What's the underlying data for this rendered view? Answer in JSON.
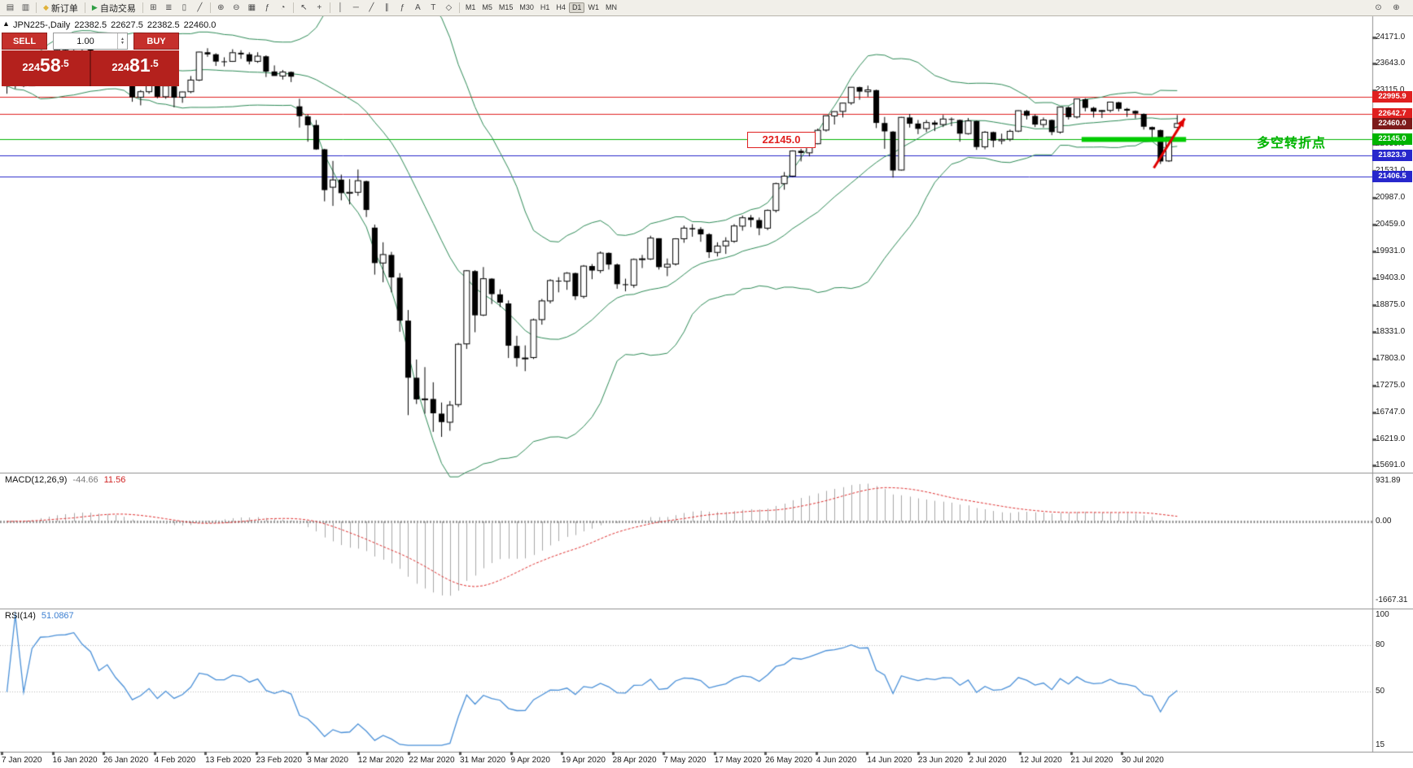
{
  "toolbar": {
    "groups": [
      {
        "items": [
          {
            "name": "new-chart-icon",
            "glyph": "▤"
          },
          {
            "name": "chart-profiles-icon",
            "glyph": "▥"
          }
        ]
      },
      {
        "items": [
          {
            "name": "new-order-button",
            "glyph": "◆",
            "glyph_color": "#dba margin",
            "label": ""
          }
        ]
      },
      {
        "items": [
          {
            "name": "tile-windows-icon",
            "glyph": "⊞"
          },
          {
            "name": "bar-chart-icon",
            "glyph": "≣"
          },
          {
            "name": "candlestick-chart-icon",
            "glyph": "▯"
          },
          {
            "name": "line-chart-icon",
            "glyph": "╱"
          }
        ]
      },
      {
        "items": [
          {
            "name": "zoom-in-icon",
            "glyph": "⊕"
          },
          {
            "name": "zoom-out-icon",
            "glyph": "⊖"
          },
          {
            "name": "grid-icon",
            "glyph": "▦"
          },
          {
            "name": "indicators-icon",
            "glyph": "ƒ"
          },
          {
            "name": "periods-icon",
            "glyph": "◔"
          }
        ]
      },
      {
        "items": [
          {
            "name": "cursor-icon",
            "glyph": "↖"
          },
          {
            "name": "crosshair-icon",
            "glyph": "+"
          }
        ]
      },
      {
        "items": [
          {
            "name": "vertical-line-icon",
            "glyph": "│"
          },
          {
            "name": "horizontal-line-icon",
            "glyph": "─"
          },
          {
            "name": "trendline-icon",
            "glyph": "╱"
          },
          {
            "name": "channel-icon",
            "glyph": "∥"
          },
          {
            "name": "fibonacci-icon",
            "glyph": "ƒ"
          },
          {
            "name": "text-icon",
            "glyph": "A"
          },
          {
            "name": "label-icon",
            "glyph": "T"
          },
          {
            "name": "shapes-icon",
            "glyph": "◇"
          }
        ]
      }
    ],
    "new_order": {
      "label": "新订单",
      "glyph": "◆",
      "glyph_color": "#e0b23a"
    },
    "autotrading": {
      "label": "自动交易",
      "glyph": "▶",
      "glyph_color": "#2f9e44"
    },
    "timeframes": [
      "M1",
      "M5",
      "M15",
      "M30",
      "H1",
      "H4",
      "D1",
      "W1",
      "MN"
    ],
    "active_timeframe": "D1",
    "right_icons": [
      {
        "name": "magnifier-icon",
        "glyph": "⊙"
      },
      {
        "name": "magnifier-plus-icon",
        "glyph": "⊕"
      }
    ]
  },
  "chart_header": {
    "symbol_period": "JPN225-,Daily",
    "open": "22382.5",
    "high": "22627.5",
    "low": "22382.5",
    "close": "22460.0",
    "collapse_icon": "▲"
  },
  "one_click": {
    "sell_label": "SELL",
    "buy_label": "BUY",
    "volume": "1.00",
    "spinner_up": "▲",
    "spinner_down": "▼",
    "sell_price": "22458.5",
    "buy_price": "22481.5"
  },
  "annotations": {
    "price_note": "22145.0",
    "turning_point_text": "多空转折点"
  },
  "macd_panel": {
    "title": "MACD(12,26,9)",
    "main_value": "-44.66",
    "signal_value": "11.56",
    "axis_labels": [
      "931.89",
      "0.00",
      "-1667.31"
    ]
  },
  "rsi_panel": {
    "title": "RSI(14)",
    "value": "51.0867",
    "axis_labels": [
      "100",
      "80",
      "50",
      "15"
    ],
    "level_lines": [
      80,
      50
    ]
  },
  "chart_data": {
    "type": "candlestick",
    "symbol": "JPN225",
    "period": "Daily",
    "current_ohlc": {
      "open": 22382.5,
      "high": 22627.5,
      "low": 22382.5,
      "close": 22460.0
    },
    "price_axis": {
      "range": [
        15600,
        24550
      ],
      "gridline_labels": [
        24171.0,
        23643.0,
        23115.0,
        22059.0,
        21531.0,
        20987.0,
        20459.0,
        19931.0,
        19403.0,
        18875.0,
        18331.0,
        17803.0,
        17275.0,
        16747.0,
        16219.0,
        15691.0
      ]
    },
    "time_axis_labels": [
      "7 Jan 2020",
      "16 Jan 2020",
      "26 Jan 2020",
      "4 Feb 2020",
      "13 Feb 2020",
      "23 Feb 2020",
      "3 Mar 2020",
      "12 Mar 2020",
      "22 Mar 2020",
      "31 Mar 2020",
      "9 Apr 2020",
      "19 Apr 2020",
      "28 Apr 2020",
      "7 May 2020",
      "17 May 2020",
      "26 May 2020",
      "4 Jun 2020",
      "14 Jun 2020",
      "23 Jun 2020",
      "2 Jul 2020",
      "12 Jul 2020",
      "21 Jul 2020",
      "30 Jul 2020"
    ],
    "levels": [
      {
        "price": 22995.9,
        "label": "22995.9",
        "color": "#e02020",
        "type": "line"
      },
      {
        "price": 22642.7,
        "label": "22642.7",
        "color": "#e02020",
        "type": "line"
      },
      {
        "price": 22460.0,
        "label": "22460.0",
        "color": "#7d1a1a",
        "type": "current"
      },
      {
        "price": 22145.0,
        "label": "22145.0",
        "color": "#00b400",
        "type": "line"
      },
      {
        "price": 21823.9,
        "label": "21823.9",
        "color": "#2727cc",
        "type": "line"
      },
      {
        "price": 21406.5,
        "label": "21406.5",
        "color": "#2727cc",
        "type": "line"
      }
    ],
    "highlight_segment": {
      "price": 22145.0,
      "from_bar": 129,
      "to_bar": 141.5,
      "color": "#00cc00"
    },
    "trend_arrow": {
      "from_bar": 137.2,
      "from_price": 21580,
      "to_bar": 140.9,
      "to_price": 22560,
      "color": "#e00000"
    },
    "indicators": {
      "bollinger": {
        "period": 20,
        "deviation": 2,
        "color": "#2e8b57"
      },
      "macd": {
        "fast": 12,
        "slow": 26,
        "signal": 9,
        "value": -44.66,
        "signal_value": 11.56,
        "draw_range": [
          -1900,
          1050
        ]
      },
      "rsi": {
        "period": 14,
        "value": 51.0867,
        "draw_range": [
          15,
          100
        ]
      }
    },
    "candles": [
      [
        23320,
        23430,
        23050,
        23205
      ],
      [
        23220,
        23370,
        23150,
        23340
      ],
      [
        23340,
        23420,
        23180,
        23204
      ],
      [
        23210,
        23560,
        23200,
        23540
      ],
      [
        23550,
        23850,
        23500,
        23830
      ],
      [
        23830,
        23900,
        23700,
        23850
      ],
      [
        23850,
        24050,
        23800,
        23916
      ],
      [
        23920,
        24040,
        23850,
        23933
      ],
      [
        23940,
        24120,
        23900,
        24041
      ],
      [
        24040,
        24090,
        23870,
        23940
      ],
      [
        23940,
        24010,
        23820,
        23864
      ],
      [
        23860,
        23890,
        23550,
        23620
      ],
      [
        23620,
        23840,
        23580,
        23795
      ],
      [
        23800,
        23830,
        23540,
        23560
      ],
      [
        23560,
        23600,
        23250,
        23344
      ],
      [
        23340,
        23420,
        22890,
        22980
      ],
      [
        22980,
        23120,
        22820,
        23090
      ],
      [
        23090,
        23330,
        23050,
        23290
      ],
      [
        23290,
        23320,
        22960,
        22990
      ],
      [
        22990,
        23210,
        22950,
        23205
      ],
      [
        23200,
        23320,
        22780,
        22972
      ],
      [
        22980,
        23090,
        22870,
        23085
      ],
      [
        23090,
        23400,
        23060,
        23320
      ],
      [
        23320,
        23880,
        23300,
        23874
      ],
      [
        23870,
        23950,
        23780,
        23828
      ],
      [
        23830,
        23850,
        23600,
        23686
      ],
      [
        23690,
        23770,
        23590,
        23686
      ],
      [
        23690,
        23930,
        23680,
        23861
      ],
      [
        23860,
        23910,
        23740,
        23828
      ],
      [
        23830,
        23870,
        23630,
        23688
      ],
      [
        23690,
        23870,
        23660,
        23793
      ],
      [
        23790,
        23810,
        23380,
        23488
      ],
      [
        23490,
        23610,
        23440,
        23401
      ],
      [
        23400,
        23520,
        23330,
        23479
      ],
      [
        23480,
        23490,
        23280,
        23387
      ],
      [
        22800,
        22950,
        22380,
        22605
      ],
      [
        22600,
        22640,
        22100,
        22426
      ],
      [
        22430,
        22530,
        21940,
        21948
      ],
      [
        21950,
        21960,
        20920,
        21143
      ],
      [
        21200,
        21720,
        20830,
        21344
      ],
      [
        21350,
        21450,
        20940,
        21083
      ],
      [
        21080,
        21360,
        20860,
        21100
      ],
      [
        21100,
        21550,
        21030,
        21329
      ],
      [
        21320,
        21330,
        20610,
        20750
      ],
      [
        20400,
        20460,
        19470,
        19699
      ],
      [
        19700,
        20110,
        19320,
        19867
      ],
      [
        19860,
        19920,
        19120,
        19416
      ],
      [
        19410,
        19500,
        18340,
        18560
      ],
      [
        18560,
        18770,
        16690,
        17431
      ],
      [
        17430,
        17790,
        16910,
        17002
      ],
      [
        17000,
        17640,
        16720,
        17011
      ],
      [
        17010,
        17340,
        16360,
        16727
      ],
      [
        16720,
        16940,
        16260,
        16553
      ],
      [
        16550,
        16970,
        16380,
        16888
      ],
      [
        16900,
        18120,
        16850,
        18092
      ],
      [
        18100,
        19560,
        18000,
        19547
      ],
      [
        19540,
        19560,
        18330,
        18665
      ],
      [
        18670,
        19620,
        18650,
        19389
      ],
      [
        19390,
        19400,
        18890,
        19085
      ],
      [
        19080,
        19180,
        18830,
        18917
      ],
      [
        18900,
        18960,
        17820,
        18065
      ],
      [
        18060,
        18260,
        17650,
        17818
      ],
      [
        17820,
        18070,
        17560,
        17820
      ],
      [
        17830,
        18600,
        17800,
        18576
      ],
      [
        18580,
        18990,
        18480,
        18950
      ],
      [
        18950,
        19380,
        18900,
        19353
      ],
      [
        19350,
        19420,
        19120,
        19345
      ],
      [
        19340,
        19520,
        19170,
        19499
      ],
      [
        19500,
        19510,
        18970,
        19043
      ],
      [
        19040,
        19660,
        19000,
        19639
      ],
      [
        19640,
        19680,
        19380,
        19551
      ],
      [
        19550,
        19930,
        19500,
        19897
      ],
      [
        19900,
        19910,
        19570,
        19669
      ],
      [
        19670,
        19690,
        19190,
        19281
      ],
      [
        19280,
        19390,
        19140,
        19263
      ],
      [
        19260,
        19790,
        19210,
        19771
      ],
      [
        19770,
        19860,
        19600,
        19783
      ],
      [
        19780,
        20240,
        19760,
        20194
      ],
      [
        20190,
        20190,
        19570,
        19619
      ],
      [
        19620,
        19790,
        19440,
        19675
      ],
      [
        19680,
        20190,
        19650,
        20179
      ],
      [
        20180,
        20440,
        20100,
        20391
      ],
      [
        20390,
        20470,
        20220,
        20366
      ],
      [
        20370,
        20410,
        20120,
        20267
      ],
      [
        20270,
        20290,
        19800,
        19914
      ],
      [
        19910,
        20110,
        19830,
        20037
      ],
      [
        20040,
        20210,
        19880,
        20134
      ],
      [
        20130,
        20470,
        20100,
        20433
      ],
      [
        20430,
        20640,
        20340,
        20595
      ],
      [
        20600,
        20650,
        20410,
        20552
      ],
      [
        20550,
        20600,
        20250,
        20388
      ],
      [
        20390,
        20760,
        20350,
        20741
      ],
      [
        20740,
        21290,
        20700,
        21271
      ],
      [
        21270,
        21500,
        21150,
        21419
      ],
      [
        21420,
        21930,
        21400,
        21916
      ],
      [
        21920,
        21960,
        21710,
        21878
      ],
      [
        21880,
        22090,
        21810,
        22062
      ],
      [
        22060,
        22360,
        22050,
        22326
      ],
      [
        22330,
        22620,
        22300,
        22614
      ],
      [
        22610,
        22700,
        22440,
        22696
      ],
      [
        22700,
        22870,
        22580,
        22864
      ],
      [
        22870,
        23180,
        22830,
        23178
      ],
      [
        23180,
        23190,
        22930,
        23091
      ],
      [
        23090,
        23210,
        22990,
        23125
      ],
      [
        23120,
        23130,
        22370,
        22472
      ],
      [
        22470,
        22590,
        21960,
        22305
      ],
      [
        22300,
        22310,
        21390,
        21531
      ],
      [
        21540,
        22590,
        21530,
        22582
      ],
      [
        22580,
        22650,
        22380,
        22456
      ],
      [
        22460,
        22530,
        22250,
        22355
      ],
      [
        22360,
        22530,
        22290,
        22479
      ],
      [
        22480,
        22520,
        22310,
        22437
      ],
      [
        22440,
        22630,
        22390,
        22549
      ],
      [
        22550,
        22580,
        22410,
        22534
      ],
      [
        22530,
        22540,
        22100,
        22260
      ],
      [
        22260,
        22570,
        22240,
        22512
      ],
      [
        22510,
        22520,
        21940,
        21995
      ],
      [
        22000,
        22310,
        21950,
        22288
      ],
      [
        22290,
        22300,
        21990,
        22122
      ],
      [
        22120,
        22260,
        22050,
        22146
      ],
      [
        22150,
        22340,
        22110,
        22306
      ],
      [
        22310,
        22720,
        22290,
        22714
      ],
      [
        22710,
        22730,
        22540,
        22615
      ],
      [
        22610,
        22640,
        22390,
        22439
      ],
      [
        22440,
        22580,
        22380,
        22530
      ],
      [
        22530,
        22540,
        22230,
        22291
      ],
      [
        22290,
        22790,
        22260,
        22785
      ],
      [
        22780,
        22800,
        22540,
        22587
      ],
      [
        22590,
        22950,
        22560,
        22946
      ],
      [
        22940,
        22960,
        22700,
        22770
      ],
      [
        22770,
        22790,
        22580,
        22696
      ],
      [
        22700,
        22730,
        22570,
        22717
      ],
      [
        22720,
        22890,
        22680,
        22884
      ],
      [
        22880,
        22890,
        22700,
        22751
      ],
      [
        22750,
        22770,
        22590,
        22715
      ],
      [
        22710,
        22720,
        22560,
        22657
      ],
      [
        22650,
        22660,
        22340,
        22397
      ],
      [
        22390,
        22400,
        22150,
        22339
      ],
      [
        22330,
        22340,
        21660,
        21710
      ],
      [
        21720,
        22200,
        21700,
        22195
      ],
      [
        22382.5,
        22627.5,
        22382.5,
        22460.0
      ]
    ]
  }
}
